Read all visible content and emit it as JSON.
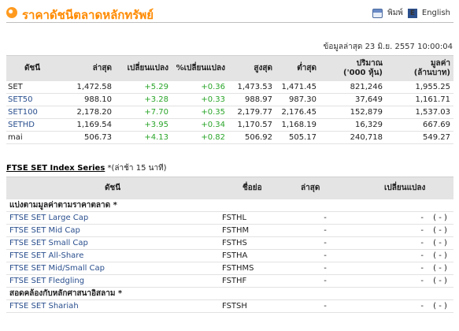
{
  "header": {
    "title": "ราคาดัชนีตลาดหลักทรัพย์",
    "print_label": "พิมพ์",
    "english_label": "English"
  },
  "timestamp": "ข้อมูลล่าสุด 23 มิ.ย. 2557 10:00:04",
  "index_table": {
    "headers": [
      "ดัชนี",
      "ล่าสุด",
      "เปลี่ยนแปลง",
      "%เปลี่ยนแปลง",
      "สูงสุด",
      "ต่ำสุด",
      "ปริมาณ\n('000 หุ้น)",
      "มูลค่า\n(ล้านบาท)"
    ],
    "header_volume_1": "ปริมาณ",
    "header_volume_2": "('000 หุ้น)",
    "header_value_1": "มูลค่า",
    "header_value_2": "(ล้านบาท)",
    "rows": [
      {
        "name": "SET",
        "last": "1,472.58",
        "change": "+5.29",
        "pct": "+0.36",
        "high": "1,473.53",
        "low": "1,471.45",
        "volume": "821,246",
        "value": "1,955.25"
      },
      {
        "name": "SET50",
        "last": "988.10",
        "change": "+3.28",
        "pct": "+0.33",
        "high": "988.97",
        "low": "987.30",
        "volume": "37,649",
        "value": "1,161.71"
      },
      {
        "name": "SET100",
        "last": "2,178.20",
        "change": "+7.70",
        "pct": "+0.35",
        "high": "2,179.77",
        "low": "2,176.45",
        "volume": "152,879",
        "value": "1,537.03"
      },
      {
        "name": "SETHD",
        "last": "1,169.54",
        "change": "+3.95",
        "pct": "+0.34",
        "high": "1,170.57",
        "low": "1,168.19",
        "volume": "16,329",
        "value": "667.69"
      },
      {
        "name": "mai",
        "last": "506.73",
        "change": "+4.13",
        "pct": "+0.82",
        "high": "506.92",
        "low": "505.17",
        "volume": "240,718",
        "value": "549.27"
      }
    ]
  },
  "ftse": {
    "title": "FTSE SET Index Series",
    "note": "*(ล่าช้า 15 นาที)",
    "headers": {
      "name": "ดัชนี",
      "symbol": "ชื่อย่อ",
      "last": "ล่าสุด",
      "change": "เปลี่ยนแปลง"
    },
    "group1": "แบ่งตามมูลค่าตามราคาตลาด *",
    "group2": "สอดคล้องกับหลักศาสนาอิสลาม *",
    "rows1": [
      {
        "name": "FTSE SET Large Cap",
        "symbol": "FSTHL",
        "last": "-",
        "change": "-",
        "pct": "( - )"
      },
      {
        "name": "FTSE SET Mid Cap",
        "symbol": "FSTHM",
        "last": "-",
        "change": "-",
        "pct": "( - )"
      },
      {
        "name": "FTSE SET Small Cap",
        "symbol": "FSTHS",
        "last": "-",
        "change": "-",
        "pct": "( - )"
      },
      {
        "name": "FTSE SET All-Share",
        "symbol": "FSTHA",
        "last": "-",
        "change": "-",
        "pct": "( - )"
      },
      {
        "name": "FTSE SET Mid/Small Cap",
        "symbol": "FSTHMS",
        "last": "-",
        "change": "-",
        "pct": "( - )"
      },
      {
        "name": "FTSE SET Fledgling",
        "symbol": "FSTHF",
        "last": "-",
        "change": "-",
        "pct": "( - )"
      }
    ],
    "rows2": [
      {
        "name": "FTSE SET Shariah",
        "symbol": "FSTSH",
        "last": "-",
        "change": "-",
        "pct": "( - )"
      }
    ]
  },
  "colors": {
    "title": "#ff8a00",
    "positive": "#2aa52a",
    "link": "#2a4f8e",
    "header_bg": "#e4e4e4"
  }
}
